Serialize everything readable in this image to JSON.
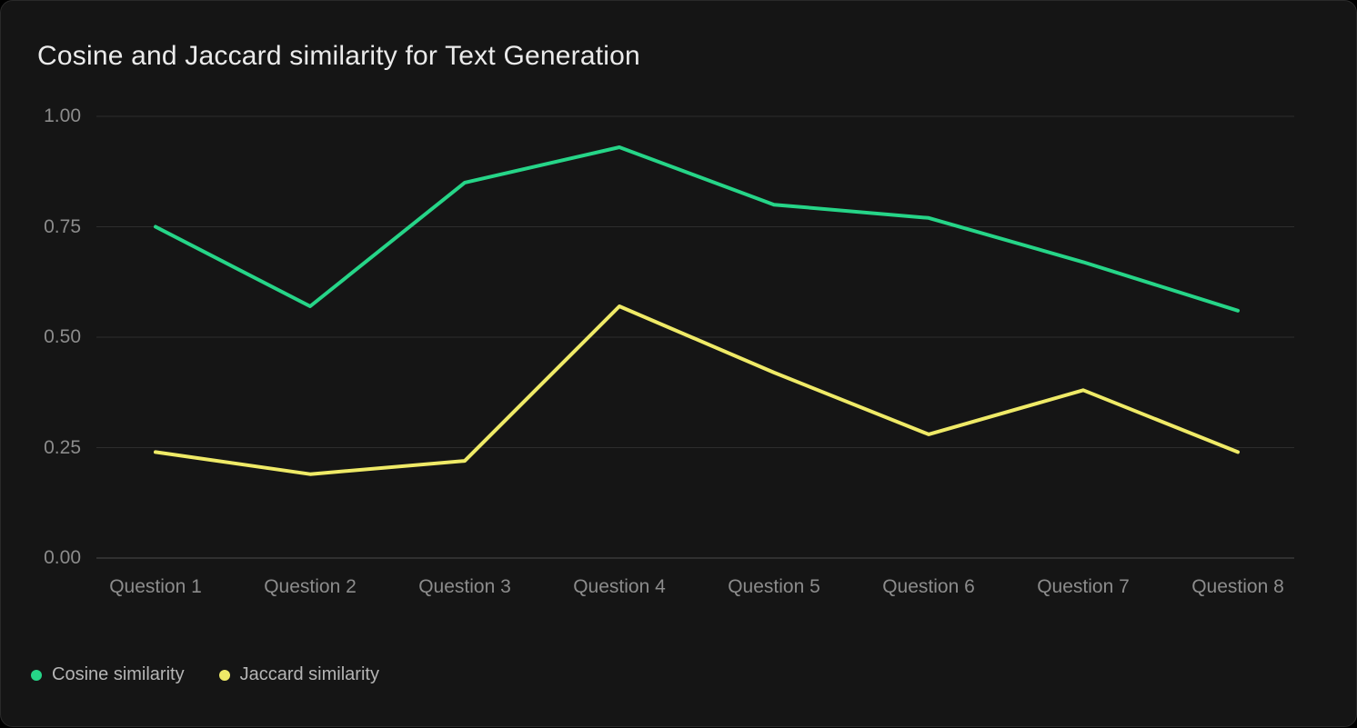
{
  "card": {
    "title": "Cosine and Jaccard similarity for Text Generation"
  },
  "chart_data": {
    "type": "line",
    "title": "Cosine and Jaccard similarity for Text Generation",
    "categories": [
      "Question 1",
      "Question 2",
      "Question 3",
      "Question 4",
      "Question 5",
      "Question 6",
      "Question 7",
      "Question 8"
    ],
    "series": [
      {
        "name": "Cosine similarity",
        "color": "#26d588",
        "values": [
          0.75,
          0.57,
          0.85,
          0.93,
          0.8,
          0.77,
          0.67,
          0.56
        ]
      },
      {
        "name": "Jaccard similarity",
        "color": "#efea67",
        "values": [
          0.24,
          0.19,
          0.22,
          0.57,
          0.42,
          0.28,
          0.38,
          0.24
        ]
      }
    ],
    "xlabel": "",
    "ylabel": "",
    "ylim": [
      0,
      1
    ],
    "yticks": [
      1.0,
      0.75,
      0.5,
      0.25,
      0.0
    ],
    "ytick_labels": [
      "1.00",
      "0.75",
      "0.50",
      "0.25",
      "0.00"
    ],
    "grid": "horizontal",
    "legend_position": "bottom-left"
  },
  "colors": {
    "page_bg": "#000000",
    "card_bg": "#151515",
    "card_border": "#2a2a2a",
    "title": "#ebebeb",
    "grid_line": "#2d2d2d",
    "axis_line": "#4a4a4a",
    "tick_label": "#8c8c8c",
    "legend_text": "#b5b5b5"
  }
}
